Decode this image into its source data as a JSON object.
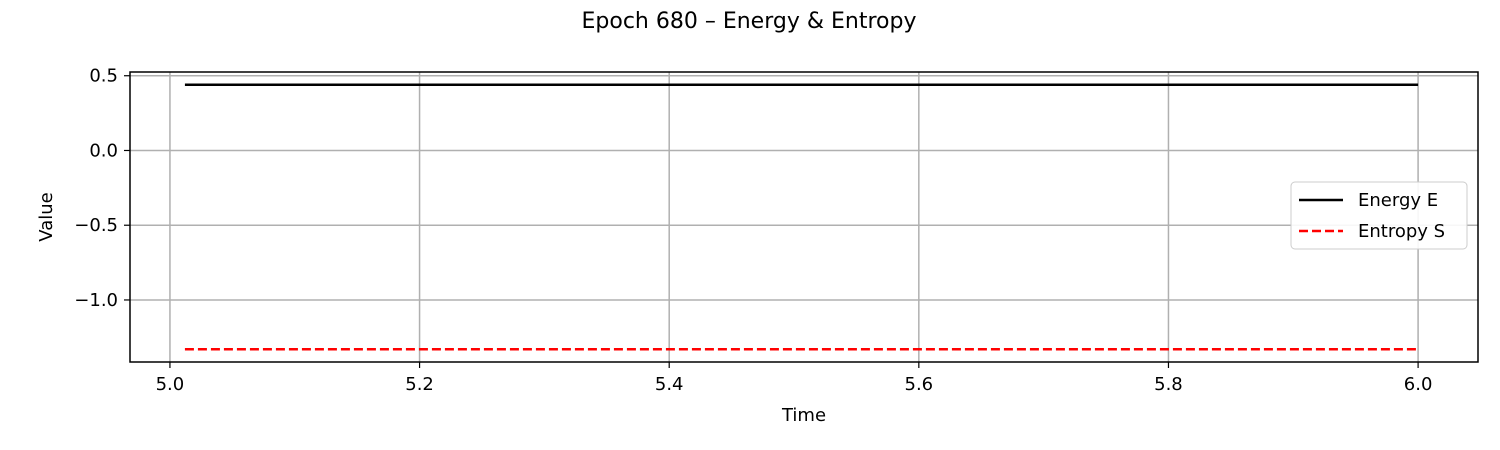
{
  "chart_data": {
    "type": "line",
    "title": "Epoch 680 – Energy & Entropy",
    "xlabel": "Time",
    "ylabel": "Value",
    "xlim": [
      4.968,
      6.048
    ],
    "ylim": [
      -1.415,
      0.525
    ],
    "xticks": [
      5.0,
      5.2,
      5.4,
      5.6,
      5.8,
      6.0
    ],
    "xtick_labels": [
      "5.0",
      "5.2",
      "5.4",
      "5.6",
      "5.8",
      "6.0"
    ],
    "yticks": [
      0.5,
      0.0,
      -0.5,
      -1.0
    ],
    "ytick_labels": [
      "0.5",
      "0.0",
      "−0.5",
      "−1.0"
    ],
    "grid": true,
    "legend_position": "center-right",
    "series": [
      {
        "name": "Energy E",
        "color": "#000000",
        "linestyle": "solid",
        "x": [
          5.012,
          5.2,
          5.4,
          5.6,
          5.8,
          6.0
        ],
        "y": [
          0.44,
          0.44,
          0.44,
          0.44,
          0.44,
          0.44
        ]
      },
      {
        "name": "Entropy S",
        "color": "#ff0000",
        "linestyle": "dashed",
        "x": [
          5.012,
          5.2,
          5.4,
          5.6,
          5.8,
          6.0
        ],
        "y": [
          -1.33,
          -1.33,
          -1.33,
          -1.33,
          -1.33,
          -1.33
        ]
      }
    ]
  }
}
